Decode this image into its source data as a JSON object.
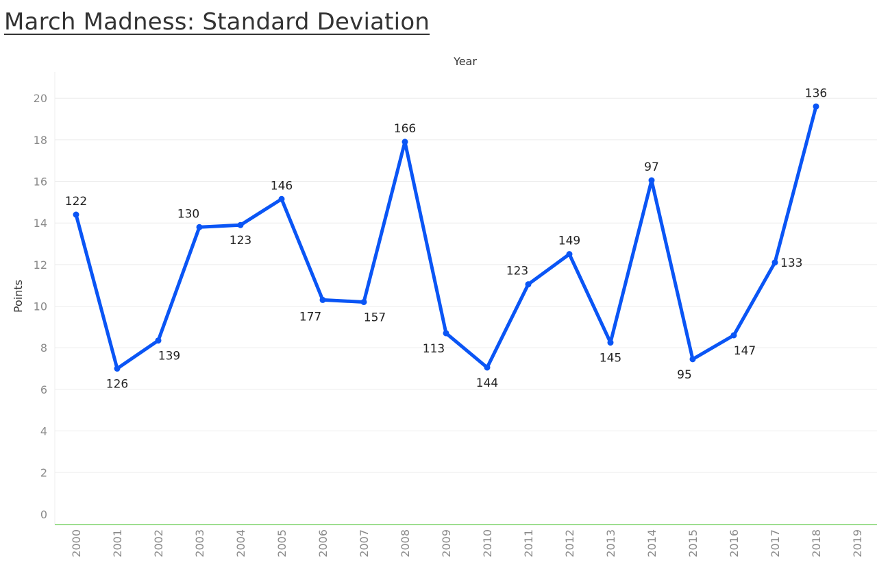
{
  "chart_data": {
    "type": "line",
    "title": "March Madness: Standard Deviation",
    "xlabel": "Year",
    "ylabel": "Points",
    "x": [
      "2000",
      "2001",
      "2002",
      "2003",
      "2004",
      "2005",
      "2006",
      "2007",
      "2008",
      "2009",
      "2010",
      "2011",
      "2012",
      "2013",
      "2014",
      "2015",
      "2016",
      "2017",
      "2018",
      "2019"
    ],
    "y_ticks": [
      0,
      2,
      4,
      6,
      8,
      10,
      12,
      14,
      16,
      18,
      20
    ],
    "ylim": [
      -0.5,
      20.6
    ],
    "grid": true,
    "series": [
      {
        "values": [
          14.4,
          7.0,
          8.35,
          13.8,
          13.9,
          15.15,
          10.3,
          10.2,
          17.9,
          8.7,
          7.05,
          11.05,
          12.5,
          8.25,
          16.05,
          7.45,
          8.6,
          12.1,
          19.6,
          null
        ],
        "labels": [
          "122",
          "126",
          "139",
          "130",
          "123",
          "146",
          "177",
          "157",
          "166",
          "113",
          "144",
          "123",
          "149",
          "145",
          "97",
          "95",
          "147",
          "133",
          "136",
          ""
        ]
      }
    ],
    "colors": {
      "line": "#0a55f5",
      "axis": "#7ed36b",
      "grid": "#ececec"
    }
  }
}
